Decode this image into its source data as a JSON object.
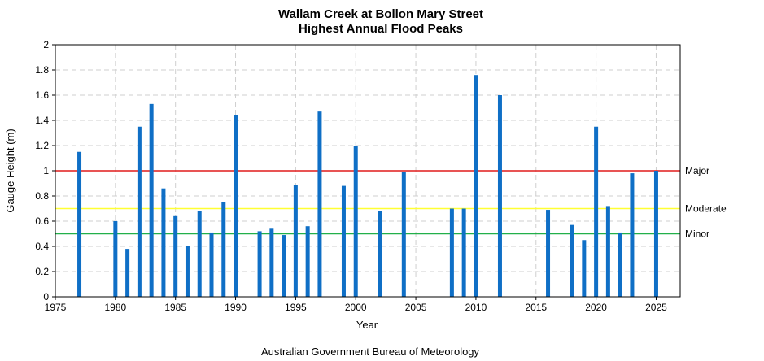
{
  "chart_data": {
    "type": "bar",
    "title": "Wallam Creek at Bollon Mary Street",
    "subtitle": "Highest Annual Flood Peaks",
    "xlabel": "Year",
    "ylabel": "Gauge Height (m)",
    "xlim": [
      1975,
      2027
    ],
    "ylim": [
      0,
      2
    ],
    "x_ticks": [
      1975,
      1980,
      1985,
      1990,
      1995,
      2000,
      2005,
      2010,
      2015,
      2020,
      2025
    ],
    "y_ticks": [
      "0",
      "0.2",
      "0.4",
      "0.6",
      "0.8",
      "1",
      "1.2",
      "1.4",
      "1.6",
      "1.8",
      "2"
    ],
    "grid": true,
    "bar_color": "#0f6fc6",
    "points": [
      {
        "year": 1977,
        "value": 1.15
      },
      {
        "year": 1980,
        "value": 0.6
      },
      {
        "year": 1981,
        "value": 0.38
      },
      {
        "year": 1982,
        "value": 1.35
      },
      {
        "year": 1983,
        "value": 1.53
      },
      {
        "year": 1984,
        "value": 0.86
      },
      {
        "year": 1985,
        "value": 0.64
      },
      {
        "year": 1986,
        "value": 0.4
      },
      {
        "year": 1987,
        "value": 0.68
      },
      {
        "year": 1988,
        "value": 0.51
      },
      {
        "year": 1989,
        "value": 0.75
      },
      {
        "year": 1990,
        "value": 1.44
      },
      {
        "year": 1992,
        "value": 0.52
      },
      {
        "year": 1993,
        "value": 0.54
      },
      {
        "year": 1994,
        "value": 0.49
      },
      {
        "year": 1995,
        "value": 0.89
      },
      {
        "year": 1996,
        "value": 0.56
      },
      {
        "year": 1997,
        "value": 1.47
      },
      {
        "year": 1999,
        "value": 0.88
      },
      {
        "year": 2000,
        "value": 1.2
      },
      {
        "year": 2002,
        "value": 0.68
      },
      {
        "year": 2004,
        "value": 0.99
      },
      {
        "year": 2008,
        "value": 0.7
      },
      {
        "year": 2009,
        "value": 0.7
      },
      {
        "year": 2010,
        "value": 1.76
      },
      {
        "year": 2012,
        "value": 1.6
      },
      {
        "year": 2016,
        "value": 0.69
      },
      {
        "year": 2018,
        "value": 0.57
      },
      {
        "year": 2019,
        "value": 0.45
      },
      {
        "year": 2020,
        "value": 1.35
      },
      {
        "year": 2021,
        "value": 0.72
      },
      {
        "year": 2022,
        "value": 0.51
      },
      {
        "year": 2023,
        "value": 0.98
      },
      {
        "year": 2025,
        "value": 1.0
      }
    ],
    "thresholds": [
      {
        "label": "Major",
        "value": 1.0,
        "color": "#e11b1b"
      },
      {
        "label": "Moderate",
        "value": 0.7,
        "color": "#ffff33"
      },
      {
        "label": "Minor",
        "value": 0.5,
        "color": "#22b04a"
      }
    ]
  },
  "footer": "Australian Government Bureau of Meteorology"
}
